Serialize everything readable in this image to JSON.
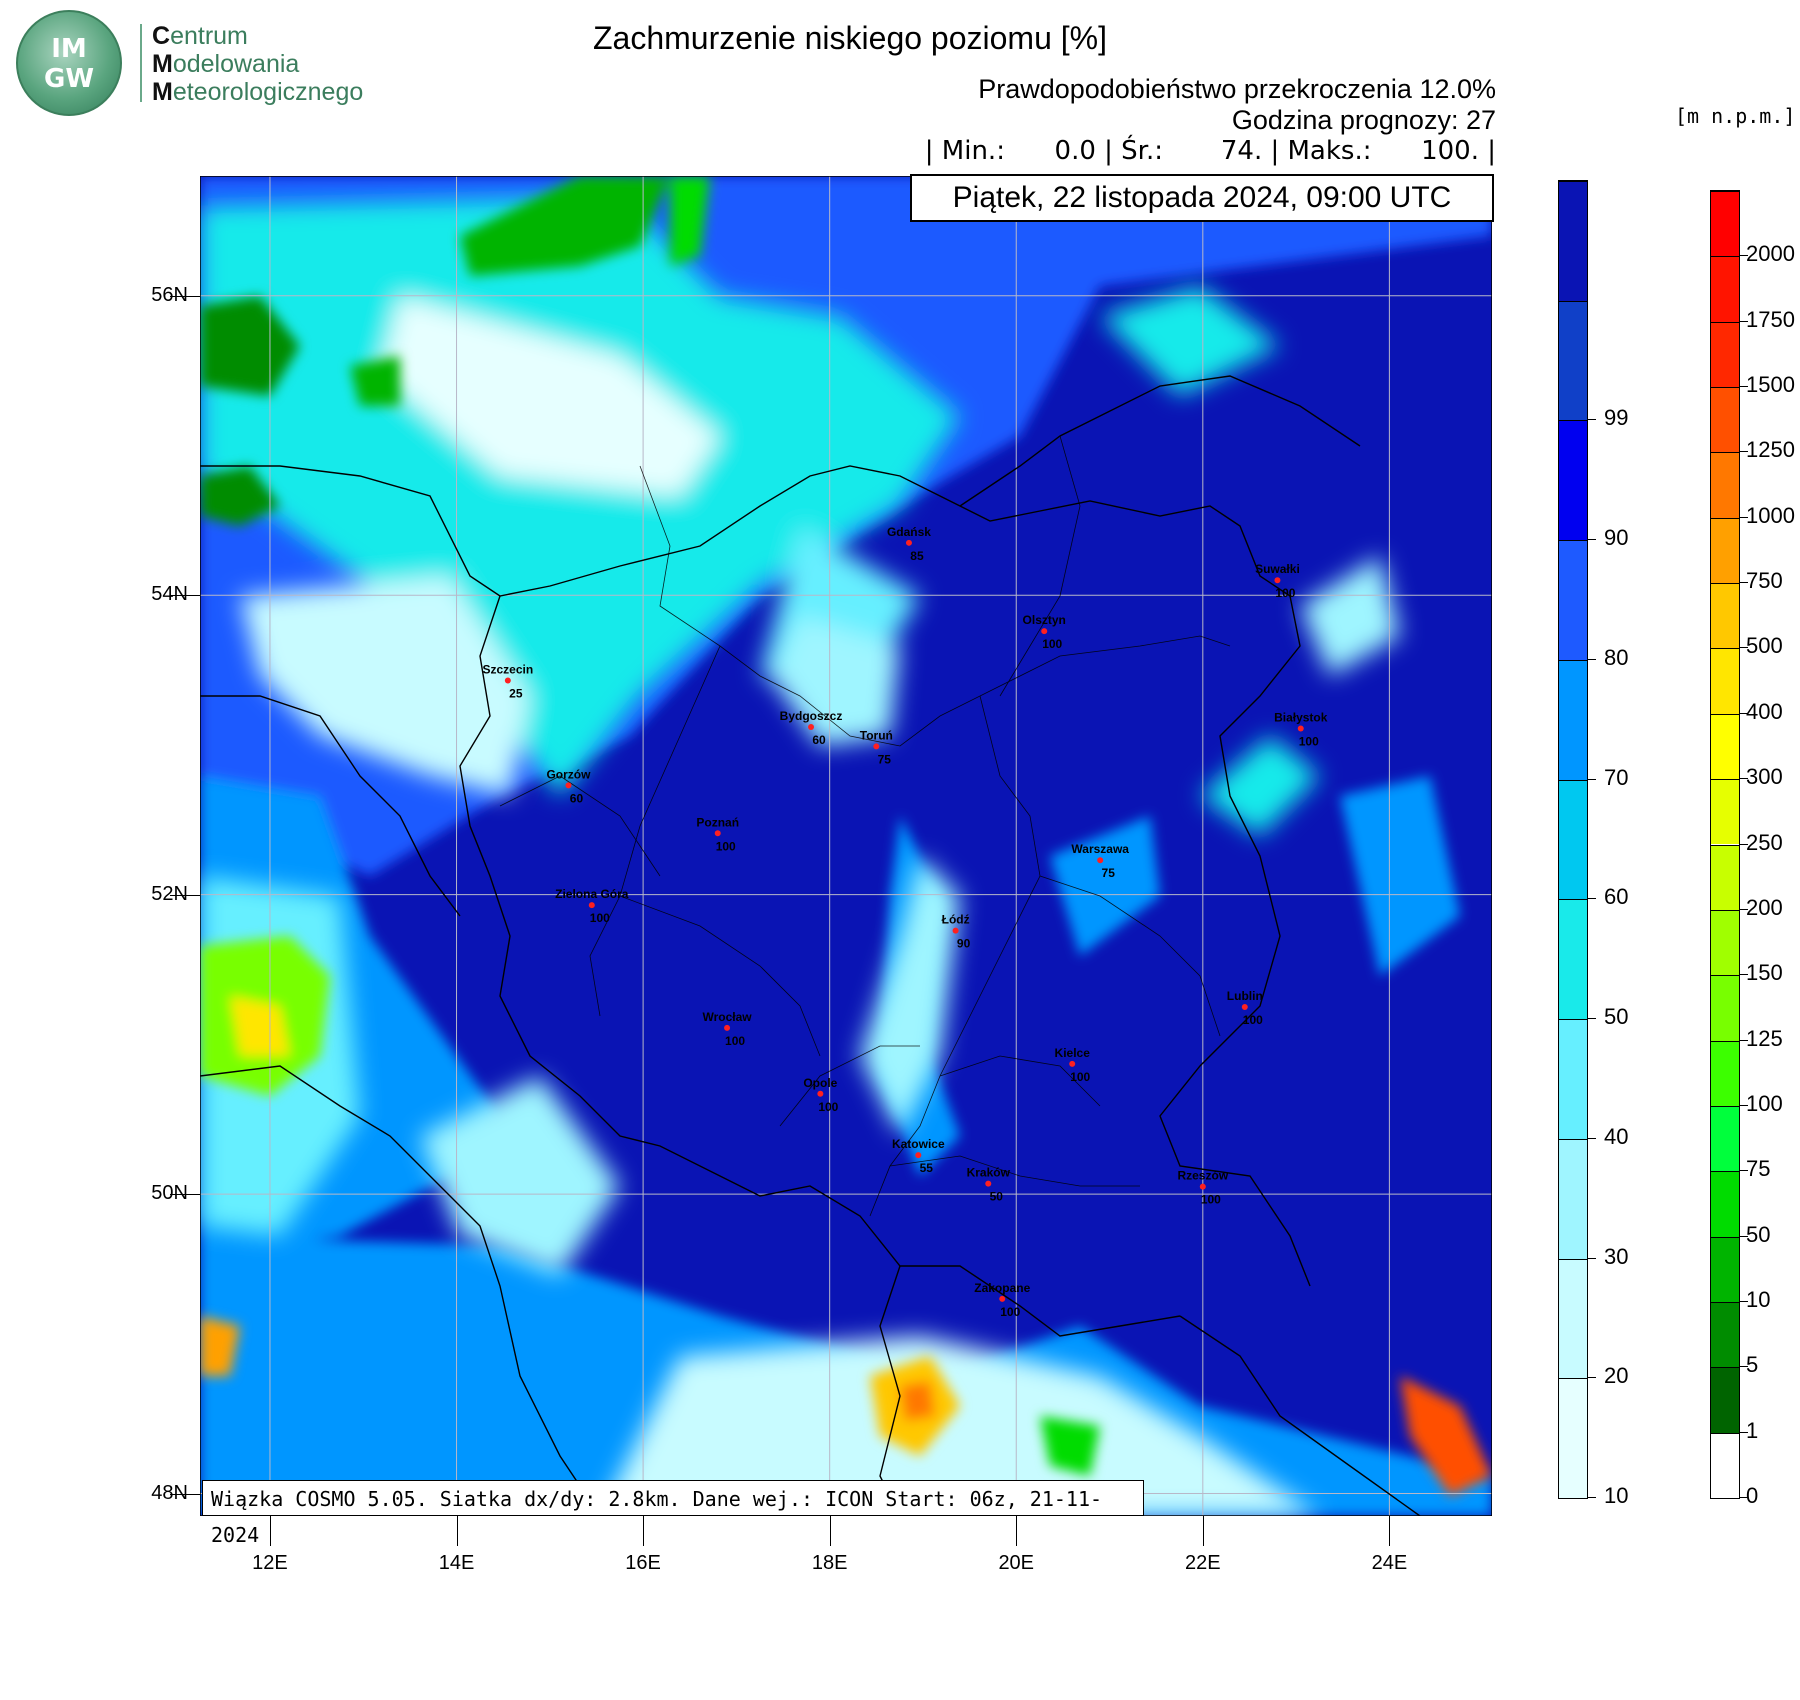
{
  "logo": {
    "abbr_top": "IM",
    "abbr_bottom": "GW",
    "line1_initial": "C",
    "line1_rest": "entrum",
    "line2_initial": "M",
    "line2_rest": "odelowania",
    "line3_initial": "M",
    "line3_rest": "eteorologicznego"
  },
  "title": "Zachmurzenie niskiego poziomu [%]",
  "header": {
    "probability": "Prawdopodobieństwo przekroczenia 12.0%",
    "forecast_hour": "Godzina prognozy: 27",
    "stats": "| Min.:      0.0 | Śr.:       74. | Maks.:      100. |"
  },
  "date": "Piątek, 22 listopada 2024, 09:00 UTC",
  "units_label": "[m n.p.m.]",
  "info": "Wiązka COSMO 5.05. Siatka dx/dy: 2.8km. Dane wej.: ICON Start: 06z, 21-11-2024",
  "axes": {
    "lat_labels": [
      "56N",
      "54N",
      "52N",
      "50N",
      "48N"
    ],
    "lat_values": [
      56,
      54,
      52,
      50,
      48
    ],
    "lon_labels": [
      "12E",
      "14E",
      "16E",
      "18E",
      "20E",
      "22E",
      "24E"
    ],
    "lon_values": [
      12,
      14,
      16,
      18,
      20,
      22,
      24
    ],
    "lon_range": [
      11.25,
      25.1
    ],
    "lat_range": [
      47.85,
      56.8
    ]
  },
  "cities": [
    {
      "name": "Gdańsk",
      "value": "85",
      "lon": 18.85,
      "lat": 54.35
    },
    {
      "name": "Suwałki",
      "value": "100",
      "lon": 22.8,
      "lat": 54.1
    },
    {
      "name": "Olsztyn",
      "value": "100",
      "lon": 20.3,
      "lat": 53.76
    },
    {
      "name": "Szczecin",
      "value": "25",
      "lon": 14.55,
      "lat": 53.43
    },
    {
      "name": "Bydgoszcz",
      "value": "60",
      "lon": 17.8,
      "lat": 53.12
    },
    {
      "name": "Toruń",
      "value": "75",
      "lon": 18.5,
      "lat": 52.99
    },
    {
      "name": "Białystok",
      "value": "100",
      "lon": 23.05,
      "lat": 53.11
    },
    {
      "name": "Gorzów",
      "value": "60",
      "lon": 15.2,
      "lat": 52.73
    },
    {
      "name": "Poznań",
      "value": "100",
      "lon": 16.8,
      "lat": 52.41
    },
    {
      "name": "Warszawa",
      "value": "75",
      "lon": 20.9,
      "lat": 52.23
    },
    {
      "name": "Zielona Góra",
      "value": "100",
      "lon": 15.45,
      "lat": 51.93
    },
    {
      "name": "Łódź",
      "value": "90",
      "lon": 19.35,
      "lat": 51.76
    },
    {
      "name": "Lublin",
      "value": "100",
      "lon": 22.45,
      "lat": 51.25
    },
    {
      "name": "Wrocław",
      "value": "100",
      "lon": 16.9,
      "lat": 51.11
    },
    {
      "name": "Kielce",
      "value": "100",
      "lon": 20.6,
      "lat": 50.87
    },
    {
      "name": "Opole",
      "value": "100",
      "lon": 17.9,
      "lat": 50.67
    },
    {
      "name": "Katowice",
      "value": "55",
      "lon": 18.95,
      "lat": 50.26
    },
    {
      "name": "Kraków",
      "value": "50",
      "lon": 19.7,
      "lat": 50.07
    },
    {
      "name": "Rzeszów",
      "value": "100",
      "lon": 22.0,
      "lat": 50.05
    },
    {
      "name": "Zakopane",
      "value": "100",
      "lon": 19.85,
      "lat": 49.3
    }
  ],
  "cloud_scale": {
    "labels": [
      "10",
      "20",
      "30",
      "40",
      "50",
      "60",
      "70",
      "80",
      "90",
      "99"
    ],
    "colors": [
      "#e6ffff",
      "#c8fbff",
      "#9ff5ff",
      "#66efff",
      "#19eaea",
      "#00c8f0",
      "#0096ff",
      "#1e5aff",
      "#0000f0",
      "#1040c8",
      "#0a14b4"
    ]
  },
  "terrain_scale": {
    "labels": [
      "0",
      "1",
      "5",
      "10",
      "50",
      "75",
      "100",
      "125",
      "150",
      "200",
      "250",
      "300",
      "400",
      "500",
      "750",
      "1000",
      "1250",
      "1500",
      "1750",
      "2000"
    ],
    "colors": [
      "#ffffff",
      "#006400",
      "#008c00",
      "#00b400",
      "#00dc00",
      "#00ff3c",
      "#3cff00",
      "#78ff00",
      "#a0ff00",
      "#c8ff00",
      "#e6ff00",
      "#ffff00",
      "#ffe600",
      "#ffc800",
      "#ffa000",
      "#ff7800",
      "#ff5000",
      "#ff2800",
      "#ff1400",
      "#ff0000"
    ]
  }
}
